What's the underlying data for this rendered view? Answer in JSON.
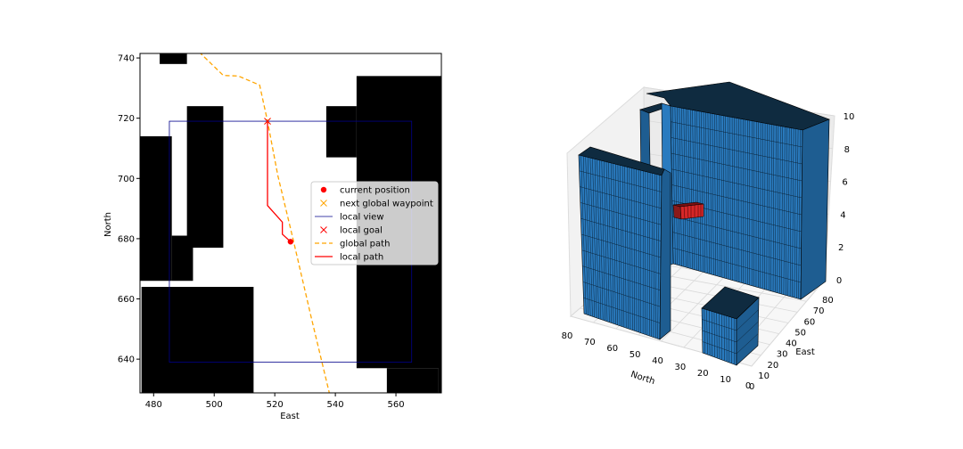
{
  "chart_data": [
    {
      "type": "map",
      "xlabel": "East",
      "ylabel": "North",
      "xlim": [
        475.5,
        575.0
      ],
      "ylim": [
        628.8,
        741.5
      ],
      "xticks": [
        480,
        500,
        520,
        540,
        560
      ],
      "yticks": [
        640,
        660,
        680,
        700,
        720,
        740
      ],
      "obstacles": [
        {
          "x0": 482,
          "x1": 491,
          "y0": 738,
          "y1": 742
        },
        {
          "x0": 475,
          "x1": 486,
          "y0": 666,
          "y1": 714
        },
        {
          "x0": 486,
          "x1": 493,
          "y0": 666,
          "y1": 681
        },
        {
          "x0": 491,
          "x1": 503,
          "y0": 677,
          "y1": 724
        },
        {
          "x0": 476,
          "x1": 513,
          "y0": 628,
          "y1": 664
        },
        {
          "x0": 537,
          "x1": 547,
          "y0": 707,
          "y1": 724
        },
        {
          "x0": 547,
          "x1": 576,
          "y0": 637,
          "y1": 734
        },
        {
          "x0": 557,
          "x1": 574,
          "y0": 628,
          "y1": 637
        },
        {
          "x0": 574,
          "x1": 576,
          "y0": 628,
          "y1": 638
        }
      ],
      "series": [
        {
          "name": "current position",
          "color": "#ff0000",
          "marker": "o",
          "points": [
            [
              525.2,
              679.0
            ]
          ]
        },
        {
          "name": "next global waypoint",
          "color": "#ffa500",
          "marker": "x",
          "points": [
            [
              517.6,
              719.0
            ]
          ]
        },
        {
          "name": "local view",
          "color": "#00008b",
          "style": "rect",
          "rect": {
            "x0": 485.2,
            "x1": 565.2,
            "y0": 639.0,
            "y1": 719.0
          }
        },
        {
          "name": "local goal",
          "color": "#ff0000",
          "marker": "x",
          "points": [
            [
              517.6,
              719.0
            ]
          ]
        },
        {
          "name": "global path",
          "color": "#ffa500",
          "style": "dashed",
          "points": [
            [
              495.0,
              742.0
            ],
            [
              503.0,
              734.2
            ],
            [
              508.0,
              734.0
            ],
            [
              515.0,
              731.0
            ],
            [
              517.6,
              719.0
            ],
            [
              521.0,
              701.0
            ],
            [
              526.0,
              680.0
            ],
            [
              532.0,
              654.0
            ],
            [
              538.0,
              628.8
            ]
          ]
        },
        {
          "name": "local path",
          "color": "#ff0000",
          "style": "solid",
          "points": [
            [
              517.6,
              719.0
            ],
            [
              517.6,
              691.0
            ],
            [
              522.5,
              685.5
            ],
            [
              522.5,
              681.5
            ],
            [
              525.2,
              679.0
            ]
          ]
        }
      ],
      "legend": "right"
    },
    {
      "type": "3d-voxels",
      "xlabel": "North",
      "ylabel": "East",
      "zlabel": "",
      "xlim": [
        0,
        80
      ],
      "ylim": [
        0,
        80
      ],
      "zlim": [
        0,
        10
      ],
      "xticks": [
        80,
        70,
        60,
        50,
        40,
        30,
        20,
        10,
        0
      ],
      "yticks": [
        0,
        10,
        20,
        30,
        40,
        50,
        60,
        70,
        80
      ],
      "zticks": [
        0,
        2,
        4,
        6,
        8,
        10
      ],
      "obstacle_color": "#1f77b4",
      "goal_color": "#d62728"
    }
  ]
}
